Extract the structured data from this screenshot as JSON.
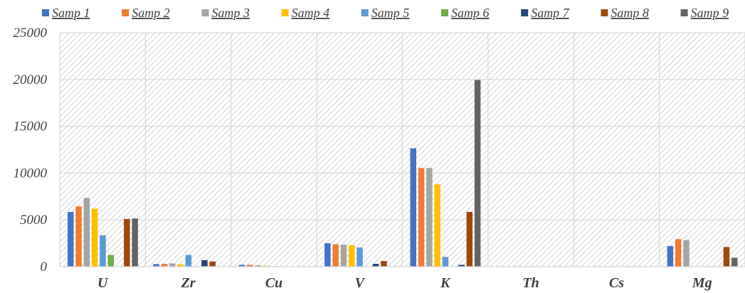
{
  "chart_data": {
    "type": "bar",
    "categories": [
      "U",
      "Zr",
      "Cu",
      "V",
      "K",
      "Th",
      "Cs",
      "Mg"
    ],
    "series": [
      {
        "name": "Samp 1",
        "color": "#4472C4",
        "values": [
          5850,
          280,
          200,
          2500,
          12650,
          0,
          0,
          2200
        ]
      },
      {
        "name": "Samp 2",
        "color": "#ED7D31",
        "values": [
          6450,
          300,
          200,
          2400,
          10550,
          0,
          0,
          2950
        ]
      },
      {
        "name": "Samp 3",
        "color": "#A5A5A5",
        "values": [
          7350,
          350,
          150,
          2350,
          10550,
          50,
          0,
          2850
        ]
      },
      {
        "name": "Samp 4",
        "color": "#FFC000",
        "values": [
          6200,
          250,
          100,
          2300,
          8800,
          0,
          0,
          0
        ]
      },
      {
        "name": "Samp 5",
        "color": "#5B9BD5",
        "values": [
          3350,
          1250,
          50,
          2050,
          1050,
          0,
          0,
          0
        ]
      },
      {
        "name": "Samp 6",
        "color": "#70AD47",
        "values": [
          1250,
          0,
          0,
          0,
          0,
          0,
          0,
          0
        ]
      },
      {
        "name": "Samp 7",
        "color": "#264478",
        "values": [
          0,
          700,
          0,
          300,
          200,
          0,
          0,
          0
        ]
      },
      {
        "name": "Samp 8",
        "color": "#9E480E",
        "values": [
          5100,
          550,
          0,
          600,
          5850,
          0,
          0,
          2100
        ]
      },
      {
        "name": "Samp 9",
        "color": "#636363",
        "values": [
          5150,
          0,
          0,
          0,
          19950,
          0,
          0,
          950
        ]
      }
    ],
    "yticks": [
      "0",
      "5000",
      "10000",
      "15000",
      "20000",
      "25000"
    ],
    "ylim": [
      0,
      25000
    ],
    "grid": true,
    "legend": "top"
  }
}
